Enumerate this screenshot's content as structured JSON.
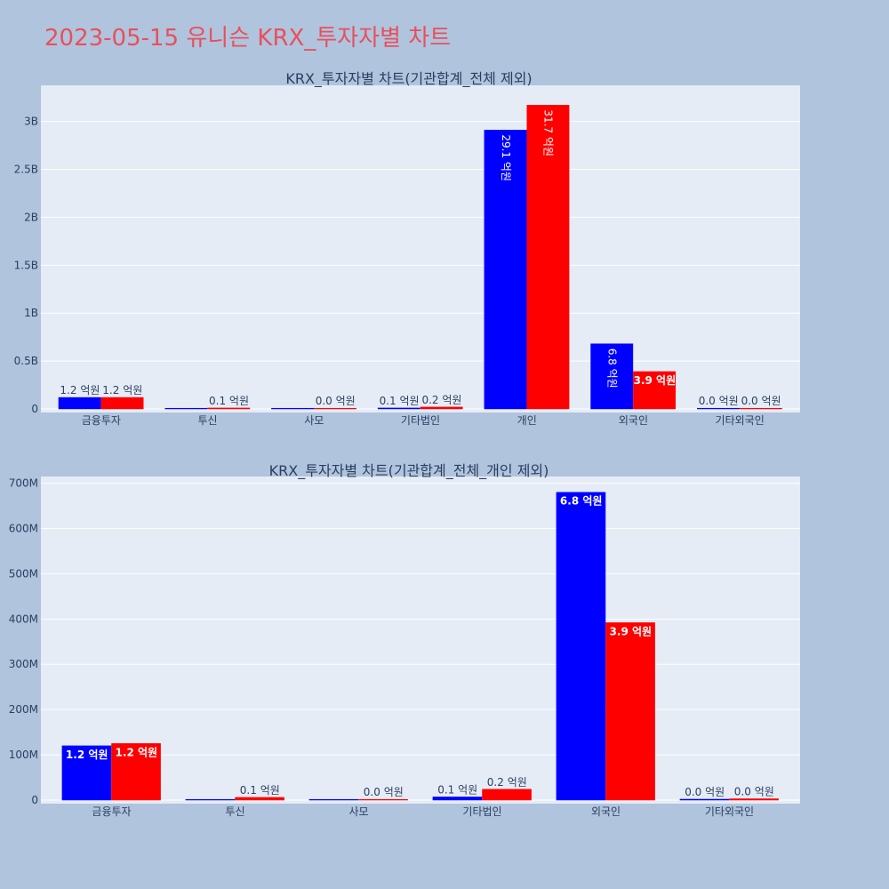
{
  "main_title": "2023-05-15 유니슨 KRX_투자자별 차트",
  "colors": {
    "series_a": "#0000ff",
    "series_b": "#ff0000",
    "title": "#e8505b",
    "plot_bg": "#e5ecf6",
    "page_bg": "#b0c4de"
  },
  "chart_data": [
    {
      "type": "bar",
      "title": "KRX_투자자별 차트(기관합계_전체 제외)",
      "categories": [
        "금융투자",
        "투신",
        "사모",
        "기타법인",
        "개인",
        "외국인",
        "기타외국인"
      ],
      "series": [
        {
          "values": [
            120000000,
            1000000,
            1000000,
            10000000,
            2910000000,
            680000000,
            2000000
          ],
          "labels": [
            "1.2 억원",
            "",
            "",
            "0.1 억원",
            "29.1 억원",
            "6.8 억원",
            "0.0 억원"
          ]
        },
        {
          "values": [
            120000000,
            10000000,
            2000000,
            20000000,
            3170000000,
            390000000,
            2000000
          ],
          "labels": [
            "1.2 억원",
            "0.1 억원",
            "0.0 억원",
            "0.2 억원",
            "31.7 억원",
            "3.9 억원",
            "0.0 억원"
          ]
        }
      ],
      "yticks": [
        {
          "value": 0,
          "label": "0"
        },
        {
          "value": 500000000,
          "label": "0.5B"
        },
        {
          "value": 1000000000,
          "label": "1B"
        },
        {
          "value": 1500000000,
          "label": "1.5B"
        },
        {
          "value": 2000000000,
          "label": "2B"
        },
        {
          "value": 2500000000,
          "label": "2.5B"
        },
        {
          "value": 3000000000,
          "label": "3B"
        }
      ],
      "ylim": [
        0,
        3340000000
      ],
      "grid": true,
      "legend": "none"
    },
    {
      "type": "bar",
      "title": "KRX_투자자별 차트(기관합계_전체_개인 제외)",
      "categories": [
        "금융투자",
        "투신",
        "사모",
        "기타법인",
        "외국인",
        "기타외국인"
      ],
      "series": [
        {
          "values": [
            120000000,
            1000000,
            1000000,
            7000000,
            680000000,
            2000000
          ],
          "labels": [
            "1.2 억원",
            "",
            "",
            "0.1 억원",
            "6.8 억원",
            "0.0 억원"
          ]
        },
        {
          "values": [
            125000000,
            6000000,
            1000000,
            24000000,
            392000000,
            3000000
          ],
          "labels": [
            "1.2 억원",
            "0.1 억원",
            "0.0 억원",
            "0.2 억원",
            "3.9 억원",
            "0.0 억원"
          ]
        }
      ],
      "yticks": [
        {
          "value": 0,
          "label": "0"
        },
        {
          "value": 100000000,
          "label": "100M"
        },
        {
          "value": 200000000,
          "label": "200M"
        },
        {
          "value": 300000000,
          "label": "300M"
        },
        {
          "value": 400000000,
          "label": "400M"
        },
        {
          "value": 500000000,
          "label": "500M"
        },
        {
          "value": 600000000,
          "label": "600M"
        },
        {
          "value": 700000000,
          "label": "700M"
        }
      ],
      "ylim": [
        0,
        707000000
      ],
      "grid": true,
      "legend": "none"
    }
  ]
}
